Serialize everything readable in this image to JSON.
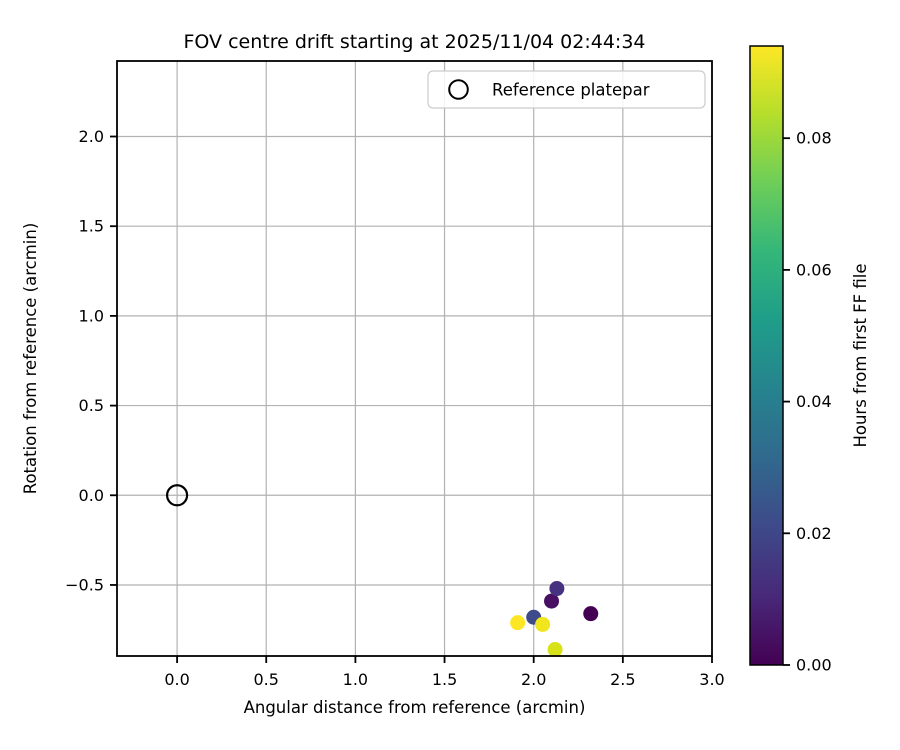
{
  "figure": {
    "background": "#ffffff"
  },
  "chart_data": {
    "type": "scatter",
    "title": "FOV centre drift starting at 2025/11/04 02:44:34",
    "xlabel": "Angular distance from reference (arcmin)",
    "ylabel": "Rotation from reference (arcmin)",
    "xlim": [
      -0.337,
      3.0
    ],
    "ylim": [
      -0.896,
      2.421
    ],
    "grid": true,
    "xticks": [
      {
        "value": 0.0,
        "label": "0.0"
      },
      {
        "value": 0.5,
        "label": "0.5"
      },
      {
        "value": 1.0,
        "label": "1.0"
      },
      {
        "value": 1.5,
        "label": "1.5"
      },
      {
        "value": 2.0,
        "label": "2.0"
      },
      {
        "value": 2.5,
        "label": "2.5"
      },
      {
        "value": 3.0,
        "label": "3.0"
      }
    ],
    "yticks": [
      {
        "value": 2.0,
        "label": "2.0"
      },
      {
        "value": 1.5,
        "label": "1.5"
      },
      {
        "value": 1.0,
        "label": "1.0"
      },
      {
        "value": 0.5,
        "label": "0.5"
      },
      {
        "value": 0.0,
        "label": "0.0"
      },
      {
        "value": -0.5,
        "label": "−0.5"
      }
    ],
    "legend": {
      "position": "upper right",
      "entries": [
        {
          "label": "Reference platepar",
          "marker": "open-circle"
        }
      ]
    },
    "reference_point": {
      "x": 0.0,
      "y": 0.0
    },
    "points": [
      {
        "x": 2.32,
        "y": -0.66,
        "hours": 0.0,
        "color": "#440154"
      },
      {
        "x": 2.1,
        "y": -0.59,
        "hours": 0.005,
        "color": "#471063"
      },
      {
        "x": 2.13,
        "y": -0.52,
        "hours": 0.014,
        "color": "#46327e"
      },
      {
        "x": 2.0,
        "y": -0.68,
        "hours": 0.019,
        "color": "#3e4a89"
      },
      {
        "x": 2.12,
        "y": -0.86,
        "hours": 0.085,
        "color": "#d8e219"
      },
      {
        "x": 2.05,
        "y": -0.72,
        "hours": 0.092,
        "color": "#f1e51d"
      },
      {
        "x": 1.91,
        "y": -0.71,
        "hours": 0.094,
        "color": "#fde725"
      }
    ],
    "colorbar": {
      "label": "Hours from first FF file",
      "vmin": 0.0,
      "vmax": 0.094,
      "colormap": "viridis",
      "ticks": [
        {
          "value": 0.0,
          "label": "0.00"
        },
        {
          "value": 0.02,
          "label": "0.02"
        },
        {
          "value": 0.04,
          "label": "0.04"
        },
        {
          "value": 0.06,
          "label": "0.06"
        },
        {
          "value": 0.08,
          "label": "0.08"
        }
      ],
      "stops": [
        {
          "offset": 0.0,
          "color": "#440154"
        },
        {
          "offset": 0.11,
          "color": "#482878"
        },
        {
          "offset": 0.22,
          "color": "#3e4989"
        },
        {
          "offset": 0.33,
          "color": "#31688e"
        },
        {
          "offset": 0.44,
          "color": "#26828e"
        },
        {
          "offset": 0.56,
          "color": "#1f9e89"
        },
        {
          "offset": 0.67,
          "color": "#35b779"
        },
        {
          "offset": 0.78,
          "color": "#6ece58"
        },
        {
          "offset": 0.89,
          "color": "#b5de2b"
        },
        {
          "offset": 1.0,
          "color": "#fde725"
        }
      ]
    },
    "colors": {
      "grid": "#b2b2b2",
      "spine": "#000000",
      "marker_reference_edge": "#000000",
      "background": "#ffffff"
    }
  }
}
